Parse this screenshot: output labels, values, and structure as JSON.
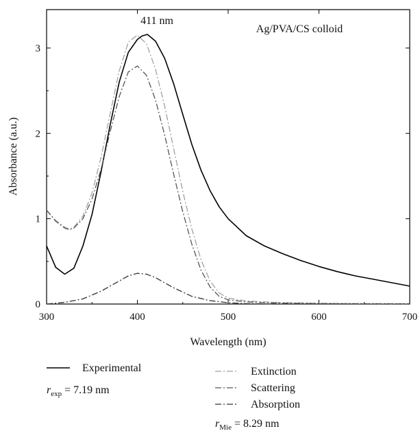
{
  "chart_data": {
    "type": "line",
    "title": "",
    "xlabel": "Wavelength (nm)",
    "ylabel": "Absorbance (a.u.)",
    "xlim": [
      300,
      700
    ],
    "ylim": [
      0,
      3.45
    ],
    "xticks": [
      300,
      400,
      500,
      600,
      700
    ],
    "yticks": [
      0,
      1,
      2,
      3
    ],
    "grid": false,
    "legend_position": "bottom",
    "annotations": {
      "peak": "411 nm",
      "sample": "Ag/PVA/CS colloid"
    },
    "radius_labels": {
      "exp": {
        "symbol": "r",
        "sub": "exp",
        "value": " = 7.19 nm"
      },
      "mie": {
        "symbol": "r",
        "sub": "Mie",
        "value": " = 8.29 nm"
      }
    },
    "series": [
      {
        "name": "Experimental",
        "color": "#000000",
        "style": "solid",
        "x": [
          300,
          310,
          320,
          330,
          340,
          350,
          360,
          370,
          380,
          390,
          400,
          405,
          411,
          420,
          430,
          440,
          450,
          460,
          470,
          480,
          490,
          500,
          520,
          540,
          560,
          580,
          600,
          620,
          640,
          660,
          680,
          700
        ],
        "y": [
          0.68,
          0.43,
          0.35,
          0.42,
          0.68,
          1.05,
          1.55,
          2.1,
          2.6,
          2.95,
          3.1,
          3.14,
          3.16,
          3.08,
          2.88,
          2.58,
          2.22,
          1.87,
          1.57,
          1.33,
          1.14,
          1.0,
          0.8,
          0.68,
          0.59,
          0.51,
          0.44,
          0.38,
          0.33,
          0.29,
          0.25,
          0.21
        ]
      },
      {
        "name": "Extinction",
        "color": "#a0a0a0",
        "style": "dashdot",
        "x": [
          300,
          310,
          320,
          325,
          330,
          340,
          350,
          360,
          370,
          380,
          390,
          400,
          410,
          420,
          430,
          440,
          450,
          460,
          470,
          480,
          490,
          500,
          520,
          550,
          600,
          650,
          700
        ],
        "y": [
          1.1,
          0.98,
          0.9,
          0.88,
          0.9,
          1.03,
          1.3,
          1.72,
          2.23,
          2.73,
          3.07,
          3.15,
          3.05,
          2.75,
          2.32,
          1.82,
          1.32,
          0.88,
          0.52,
          0.27,
          0.13,
          0.07,
          0.035,
          0.02,
          0.01,
          0.005,
          0.005
        ]
      },
      {
        "name": "Scattering",
        "color": "#555555",
        "style": "dashdot",
        "x": [
          300,
          310,
          320,
          325,
          330,
          340,
          350,
          360,
          370,
          380,
          390,
          400,
          410,
          420,
          430,
          440,
          450,
          460,
          470,
          480,
          490,
          500,
          520,
          550,
          600,
          650,
          700
        ],
        "y": [
          1.1,
          0.97,
          0.89,
          0.87,
          0.89,
          1.0,
          1.23,
          1.58,
          2.02,
          2.43,
          2.72,
          2.79,
          2.68,
          2.39,
          1.98,
          1.52,
          1.08,
          0.7,
          0.4,
          0.2,
          0.09,
          0.05,
          0.025,
          0.012,
          0.005,
          0.003,
          0.002
        ]
      },
      {
        "name": "Absorption",
        "color": "#333333",
        "style": "dashdot",
        "x": [
          300,
          320,
          340,
          360,
          380,
          390,
          400,
          410,
          420,
          440,
          460,
          480,
          500,
          520,
          550,
          600,
          700
        ],
        "y": [
          0.0,
          0.02,
          0.06,
          0.15,
          0.27,
          0.33,
          0.36,
          0.35,
          0.31,
          0.19,
          0.09,
          0.04,
          0.015,
          0.005,
          0.0,
          0.0,
          0.0
        ]
      }
    ]
  }
}
